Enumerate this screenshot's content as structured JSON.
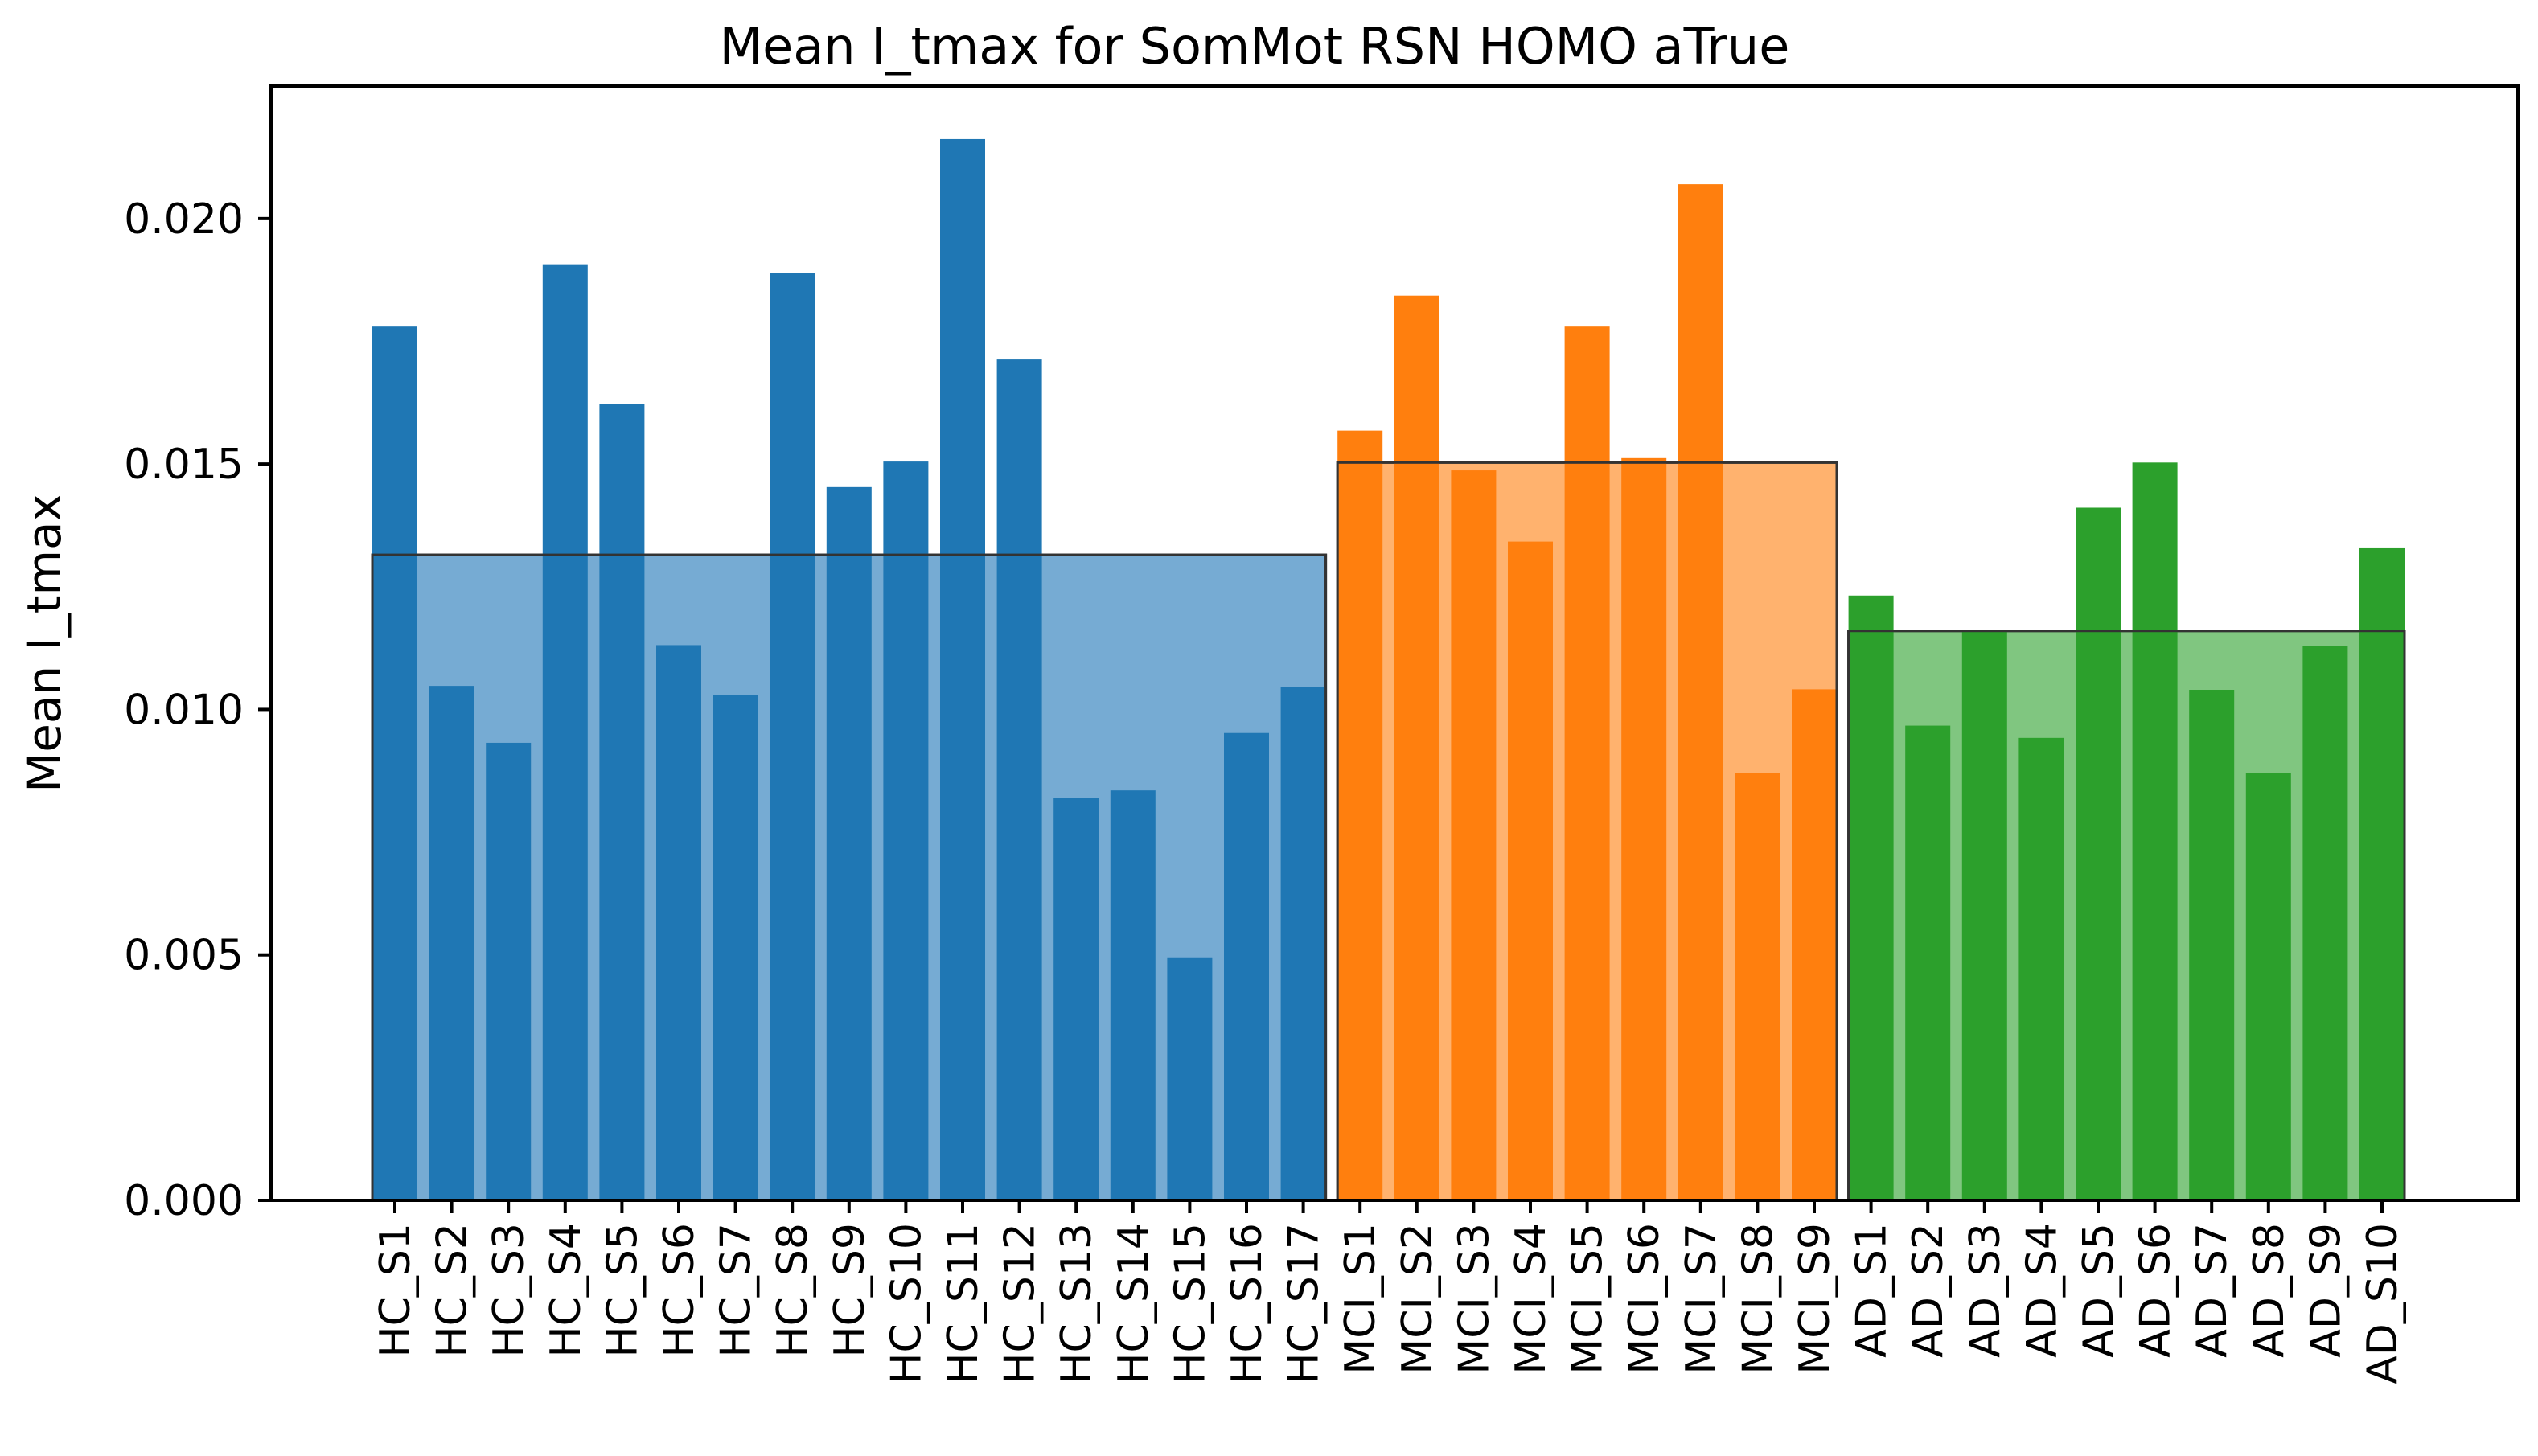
{
  "chart_data": {
    "type": "bar",
    "title": "Mean I_tmax for SomMot RSN HOMO aTrue",
    "xlabel": "",
    "ylabel": "Mean I_tmax",
    "ylim": [
      0,
      0.0227
    ],
    "yticks": [
      "0.000",
      "0.005",
      "0.010",
      "0.015",
      "0.020"
    ],
    "grid": false,
    "legend": "none",
    "categories": [
      "HC_S1",
      "HC_S2",
      "HC_S3",
      "HC_S4",
      "HC_S5",
      "HC_S6",
      "HC_S7",
      "HC_S8",
      "HC_S9",
      "HC_S10",
      "HC_S11",
      "HC_S12",
      "HC_S13",
      "HC_S14",
      "HC_S15",
      "HC_S16",
      "HC_S17",
      "MCI_S1",
      "MCI_S2",
      "MCI_S3",
      "MCI_S4",
      "MCI_S5",
      "MCI_S6",
      "MCI_S7",
      "MCI_S8",
      "MCI_S9",
      "AD_S1",
      "AD_S2",
      "AD_S3",
      "AD_S4",
      "AD_S5",
      "AD_S6",
      "AD_S7",
      "AD_S8",
      "AD_S9",
      "AD_S10"
    ],
    "groups": [
      {
        "members": 17,
        "mean": 0.01315,
        "color": "#1f77b4",
        "mean_color": "#76abd3"
      },
      {
        "members": 9,
        "mean": 0.01503,
        "color": "#ff7f0e",
        "mean_color": "#ffb26e"
      },
      {
        "members": 10,
        "mean": 0.0116,
        "color": "#2ca02c",
        "mean_color": "#80c680"
      }
    ],
    "values": [
      0.0178,
      0.01048,
      0.00932,
      0.01907,
      0.01622,
      0.01131,
      0.0103,
      0.0189,
      0.01453,
      0.01505,
      0.02162,
      0.01713,
      0.0082,
      0.00835,
      0.00495,
      0.00952,
      0.01045,
      0.01568,
      0.01843,
      0.01487,
      0.01342,
      0.0178,
      0.01512,
      0.0207,
      0.0087,
      0.01041,
      0.01232,
      0.00967,
      0.0116,
      0.00942,
      0.01411,
      0.01503,
      0.0104,
      0.0087,
      0.0113,
      0.0133
    ]
  }
}
